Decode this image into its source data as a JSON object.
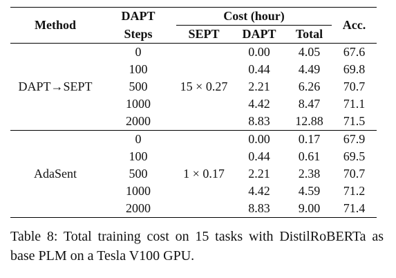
{
  "table": {
    "headers": {
      "method": "Method",
      "dapt_line1": "DAPT",
      "dapt_line2": "Steps",
      "cost_group": "Cost (hour)",
      "sept": "SEPT",
      "dapt": "DAPT",
      "total": "Total",
      "acc": "Acc."
    },
    "groups": [
      {
        "method": "DAPT→SEPT",
        "sept": "15 × 0.27",
        "rows": [
          {
            "steps": "0",
            "dapt": "0.00",
            "total": "4.05",
            "acc": "67.6"
          },
          {
            "steps": "100",
            "dapt": "0.44",
            "total": "4.49",
            "acc": "69.8"
          },
          {
            "steps": "500",
            "dapt": "2.21",
            "total": "6.26",
            "acc": "70.7"
          },
          {
            "steps": "1000",
            "dapt": "4.42",
            "total": "8.47",
            "acc": "71.1"
          },
          {
            "steps": "2000",
            "dapt": "8.83",
            "total": "12.88",
            "acc": "71.5"
          }
        ]
      },
      {
        "method": "AdaSent",
        "sept": "1 × 0.17",
        "rows": [
          {
            "steps": "0",
            "dapt": "0.00",
            "total": "0.17",
            "acc": "67.9"
          },
          {
            "steps": "100",
            "dapt": "0.44",
            "total": "0.61",
            "acc": "69.5"
          },
          {
            "steps": "500",
            "dapt": "2.21",
            "total": "2.38",
            "acc": "70.7"
          },
          {
            "steps": "1000",
            "dapt": "4.42",
            "total": "4.59",
            "acc": "71.2"
          },
          {
            "steps": "2000",
            "dapt": "8.83",
            "total": "9.00",
            "acc": "71.4"
          }
        ]
      }
    ]
  },
  "caption": "Table 8: Total training cost on 15 tasks with DistilRoBERTa as base PLM on a Tesla V100 GPU."
}
